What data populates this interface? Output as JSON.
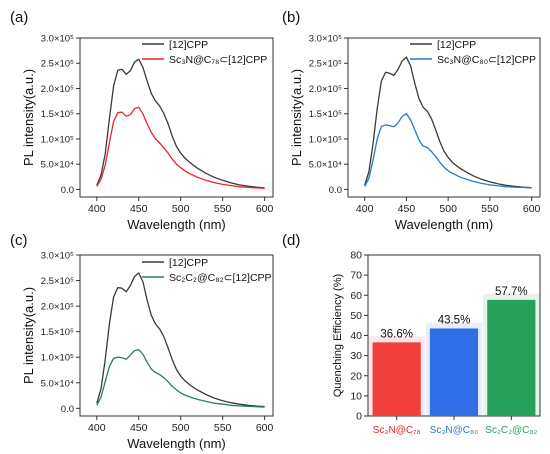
{
  "chart_data": [
    {
      "panel": "(a)",
      "type": "line",
      "xlabel": "Wavelength (nm)",
      "ylabel": "PL intensity(a.u.)",
      "xlim": [
        380,
        610
      ],
      "ylim": [
        -15000,
        300000
      ],
      "xticks": [
        "400",
        "450",
        "500",
        "550",
        "600"
      ],
      "yticks": [
        "0.0",
        "5.0×10⁴",
        "1.0×10⁵",
        "1.5×10⁵",
        "2.0×10⁵",
        "2.5×10⁵",
        "3.0×10⁵"
      ],
      "x": [
        400,
        405,
        410,
        415,
        420,
        425,
        430,
        435,
        440,
        445,
        450,
        455,
        460,
        465,
        470,
        475,
        480,
        485,
        490,
        495,
        500,
        505,
        510,
        515,
        520,
        530,
        540,
        550,
        560,
        570,
        580,
        590,
        600
      ],
      "series": [
        {
          "name": "[12]CPP",
          "color": "#3a3a3a",
          "values": [
            8000,
            28000,
            70000,
            140000,
            205000,
            236000,
            238000,
            228000,
            235000,
            252000,
            258000,
            242000,
            215000,
            190000,
            175000,
            165000,
            150000,
            130000,
            105000,
            85000,
            72000,
            62000,
            55000,
            48000,
            42000,
            32000,
            24000,
            18000,
            13000,
            9000,
            6500,
            4500,
            3000
          ]
        },
        {
          "name": "Sc₃N@C₇₈⊂[12]CPP",
          "color": "#e8262b",
          "values": [
            6000,
            20000,
            48000,
            92000,
            135000,
            152000,
            153000,
            145000,
            148000,
            160000,
            163000,
            150000,
            130000,
            113000,
            100000,
            92000,
            82000,
            72000,
            60000,
            50000,
            43000,
            37000,
            32000,
            28000,
            24000,
            18000,
            13500,
            10000,
            7500,
            5500,
            4000,
            3000,
            2000
          ]
        }
      ]
    },
    {
      "panel": "(b)",
      "type": "line",
      "xlabel": "Wavelength (nm)",
      "ylabel": "PL intensity(a.u.)",
      "xlim": [
        380,
        610
      ],
      "ylim": [
        -15000,
        300000
      ],
      "xticks": [
        "400",
        "450",
        "500",
        "550",
        "600"
      ],
      "yticks": [
        "0.0",
        "5.0×10⁴",
        "1.0×10⁵",
        "1.5×10⁵",
        "2.0×10⁵",
        "2.5×10⁵",
        "3.0×10⁵"
      ],
      "x": [
        400,
        405,
        410,
        415,
        420,
        425,
        430,
        435,
        440,
        445,
        450,
        455,
        460,
        465,
        470,
        475,
        480,
        485,
        490,
        495,
        500,
        505,
        510,
        515,
        520,
        530,
        540,
        550,
        560,
        570,
        580,
        590,
        600
      ],
      "series": [
        {
          "name": "[12]CPP",
          "color": "#3a3a3a",
          "values": [
            8000,
            35000,
            90000,
            160000,
            215000,
            232000,
            230000,
            226000,
            238000,
            255000,
            262000,
            245000,
            210000,
            180000,
            163000,
            155000,
            140000,
            118000,
            95000,
            76000,
            63000,
            54000,
            47000,
            41000,
            36000,
            27000,
            20000,
            15000,
            11000,
            8000,
            6000,
            4500,
            3500
          ]
        },
        {
          "name": "Sc₃N@C₈₀⊂[12]CPP",
          "color": "#2b79c2",
          "values": [
            6000,
            22000,
            58000,
            100000,
            125000,
            128000,
            126000,
            124000,
            132000,
            145000,
            150000,
            138000,
            118000,
            98000,
            86000,
            83000,
            75000,
            65000,
            54000,
            44000,
            37000,
            32000,
            28000,
            24000,
            21000,
            16000,
            12000,
            9000,
            7000,
            5500,
            4500,
            3800,
            3000
          ]
        }
      ]
    },
    {
      "panel": "(c)",
      "type": "line",
      "xlabel": "Wavelength (nm)",
      "ylabel": "PL intensity(a.u.)",
      "xlim": [
        380,
        610
      ],
      "ylim": [
        -15000,
        300000
      ],
      "xticks": [
        "400",
        "450",
        "500",
        "550",
        "600"
      ],
      "yticks": [
        "0.0",
        "5.0×10⁴",
        "1.0×10⁵",
        "1.5×10⁵",
        "2.0×10⁵",
        "2.5×10⁵",
        "3.0×10⁵"
      ],
      "x": [
        400,
        405,
        410,
        415,
        420,
        425,
        430,
        435,
        440,
        445,
        450,
        455,
        460,
        465,
        470,
        475,
        480,
        485,
        490,
        495,
        500,
        505,
        510,
        515,
        520,
        530,
        540,
        550,
        560,
        570,
        580,
        590,
        600
      ],
      "series": [
        {
          "name": "[12]CPP",
          "color": "#3a3a3a",
          "values": [
            10000,
            38000,
            95000,
            165000,
            218000,
            236000,
            235000,
            228000,
            240000,
            258000,
            265000,
            248000,
            212000,
            182000,
            165000,
            155000,
            140000,
            118000,
            95000,
            76000,
            63000,
            54000,
            47000,
            41000,
            36000,
            27000,
            20000,
            15000,
            11000,
            8000,
            6000,
            4500,
            3500
          ]
        },
        {
          "name": "Sc₂C₂@C₈₂⊂[12]CPP",
          "color": "#2e7d5b",
          "values": [
            6000,
            22000,
            52000,
            82000,
            98000,
            100000,
            99000,
            96000,
            104000,
            113000,
            115000,
            106000,
            90000,
            77000,
            70000,
            66000,
            60000,
            52000,
            43000,
            36000,
            30000,
            26000,
            23000,
            20000,
            17500,
            13500,
            10000,
            8000,
            6000,
            4800,
            3800,
            3200,
            2500
          ]
        }
      ]
    },
    {
      "panel": "(d)",
      "type": "bar",
      "ylabel": "Quenching Efficiency (%)",
      "ylim": [
        0,
        80
      ],
      "yticks": [
        "0",
        "10",
        "20",
        "30",
        "40",
        "50",
        "60",
        "70",
        "80"
      ],
      "categories": [
        "Sc₃N@C₇₈",
        "Sc₃N@C₈₀",
        "Sc₂C₂@C₈₂"
      ],
      "category_colors": [
        "#e8262b",
        "#2b79c2",
        "#2e9a5e"
      ],
      "bar_colors": [
        "#f2413c",
        "#2f6ee6",
        "#27a05e"
      ],
      "values": [
        36.6,
        43.5,
        57.7
      ],
      "value_labels": [
        "36.6%",
        "43.5%",
        "57.7%"
      ]
    }
  ]
}
